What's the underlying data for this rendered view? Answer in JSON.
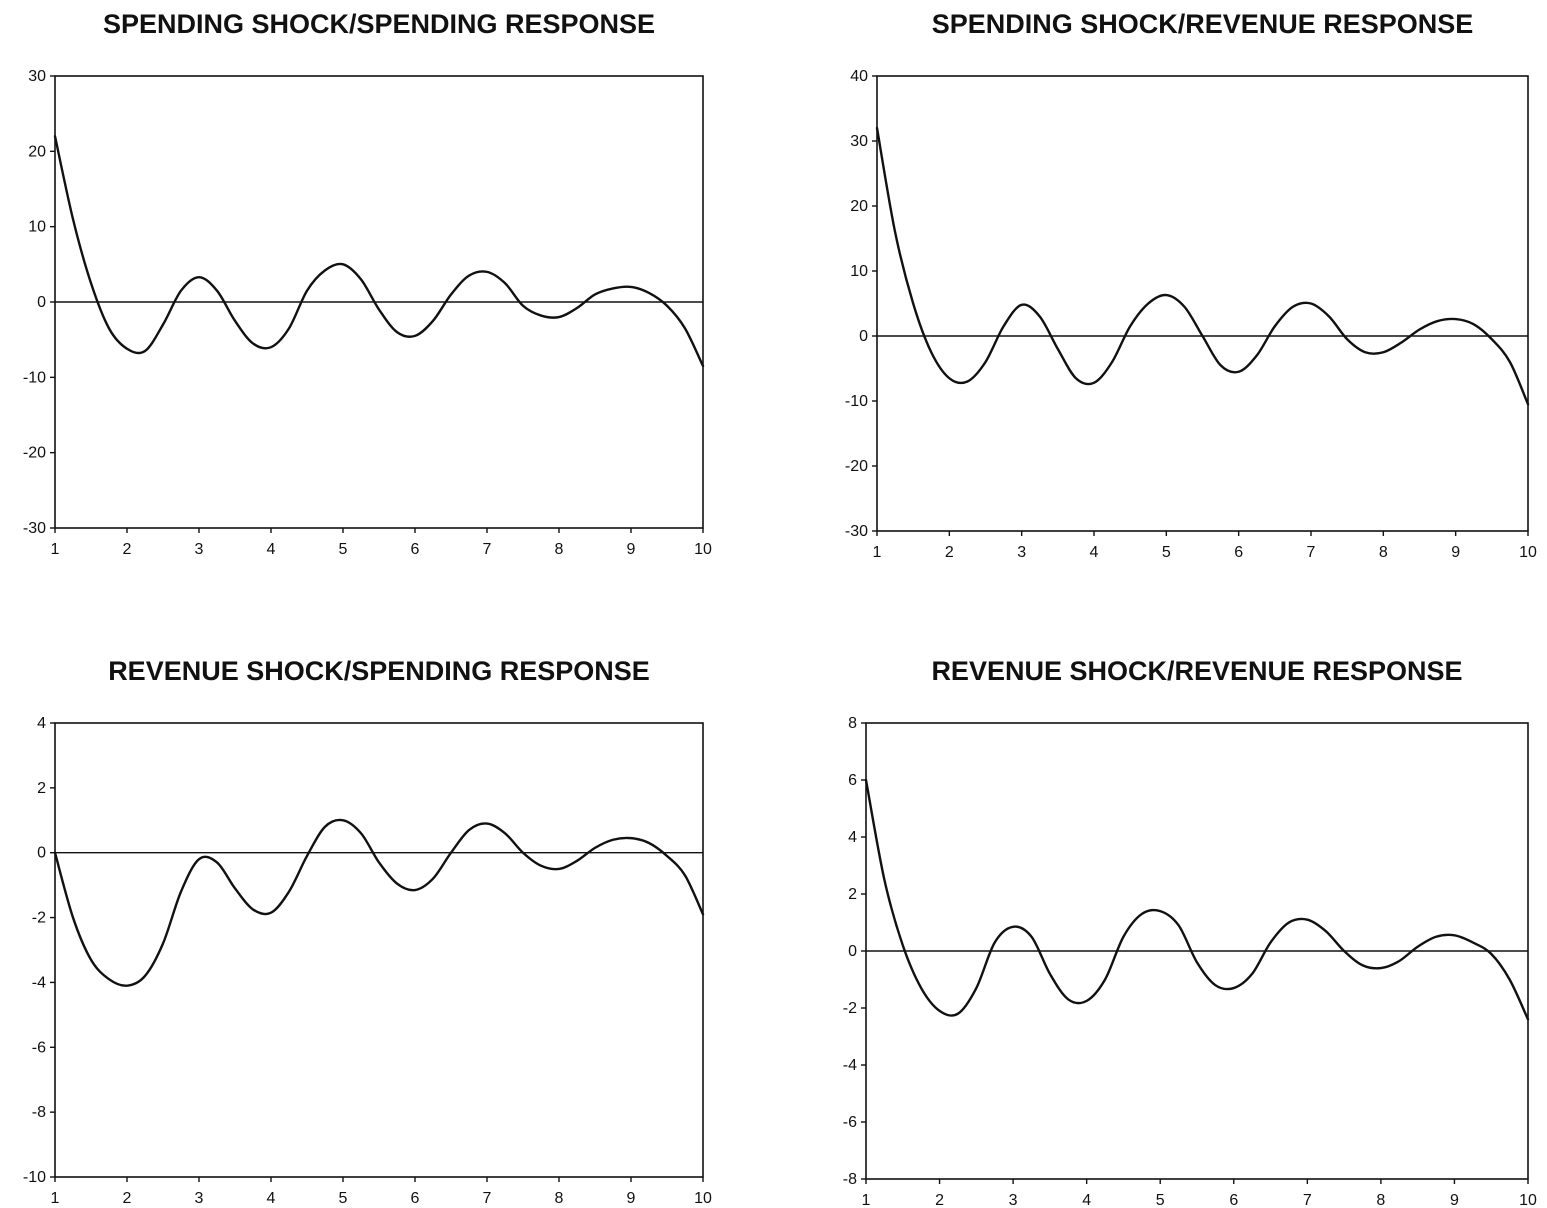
{
  "chart_data": [
    {
      "type": "line",
      "title": "SPENDING SHOCK/SPENDING RESPONSE",
      "ylim": [
        -30,
        30
      ],
      "yticks": [
        30,
        20,
        10,
        0,
        -10,
        -20,
        -30
      ],
      "ytick_labels": [
        "30",
        "20",
        "10",
        "0",
        "-10",
        "-20",
        "-30"
      ],
      "xlim": [
        1,
        10
      ],
      "xticks": [
        1,
        2,
        3,
        4,
        5,
        6,
        7,
        8,
        9,
        10
      ],
      "xtick_labels": [
        "1",
        "2",
        "3",
        "4",
        "5",
        "6",
        "7",
        "8",
        "9",
        "10"
      ],
      "zero_line": true,
      "x": [
        1,
        1.25,
        1.5,
        1.75,
        2,
        2.25,
        2.5,
        2.75,
        3,
        3.25,
        3.5,
        3.75,
        4,
        4.25,
        4.5,
        4.75,
        5,
        5.25,
        5.5,
        5.75,
        6,
        6.25,
        6.5,
        6.75,
        7,
        7.25,
        7.5,
        7.75,
        8,
        8.25,
        8.5,
        8.75,
        9,
        9.25,
        9.5,
        9.75,
        10
      ],
      "y": [
        22,
        11,
        2.5,
        -3.5,
        -6.2,
        -6.5,
        -3,
        1.5,
        3.3,
        1.5,
        -2.5,
        -5.5,
        -6,
        -3.5,
        1.5,
        4.2,
        5,
        3,
        -1,
        -4,
        -4.5,
        -2.5,
        1,
        3.5,
        4,
        2.5,
        -0.5,
        -1.8,
        -2,
        -0.8,
        1,
        1.8,
        2,
        1.2,
        -0.5,
        -3.5,
        -8.5
      ]
    },
    {
      "type": "line",
      "title": "SPENDING SHOCK/REVENUE RESPONSE",
      "ylim": [
        -30,
        40
      ],
      "yticks": [
        40,
        30,
        20,
        10,
        0,
        -10,
        -20,
        -30
      ],
      "ytick_labels": [
        "40",
        "30",
        "20",
        "10",
        "0",
        "-10",
        "-20",
        "-30"
      ],
      "xlim": [
        1,
        10
      ],
      "xticks": [
        1,
        2,
        3,
        4,
        5,
        6,
        7,
        8,
        9,
        10
      ],
      "xtick_labels": [
        "1",
        "2",
        "3",
        "4",
        "5",
        "6",
        "7",
        "8",
        "9",
        "10"
      ],
      "zero_line": true,
      "x": [
        1,
        1.25,
        1.5,
        1.75,
        2,
        2.25,
        2.5,
        2.75,
        3,
        3.25,
        3.5,
        3.75,
        4,
        4.25,
        4.5,
        4.75,
        5,
        5.25,
        5.5,
        5.75,
        6,
        6.25,
        6.5,
        6.75,
        7,
        7.25,
        7.5,
        7.75,
        8,
        8.25,
        8.5,
        8.75,
        9,
        9.25,
        9.5,
        9.75,
        10
      ],
      "y": [
        32,
        16,
        5,
        -2.5,
        -6.5,
        -7,
        -4,
        1.5,
        4.8,
        3,
        -2,
        -6.5,
        -7.2,
        -4,
        1.5,
        5,
        6.3,
        4.5,
        0,
        -4.5,
        -5.5,
        -3,
        1.5,
        4.5,
        5,
        3,
        -0.5,
        -2.5,
        -2.5,
        -1,
        1,
        2.3,
        2.6,
        1.8,
        -0.5,
        -4,
        -10.5
      ]
    },
    {
      "type": "line",
      "title": "REVENUE SHOCK/SPENDING RESPONSE",
      "ylim": [
        -10,
        4
      ],
      "yticks": [
        4,
        2,
        0,
        -2,
        -4,
        -6,
        -8,
        -10
      ],
      "ytick_labels": [
        "4",
        "2",
        "0",
        "-2",
        "-4",
        "-6",
        "-8",
        "-10"
      ],
      "xlim": [
        1,
        10
      ],
      "xticks": [
        1,
        2,
        3,
        4,
        5,
        6,
        7,
        8,
        9,
        10
      ],
      "xtick_labels": [
        "1",
        "2",
        "3",
        "4",
        "5",
        "6",
        "7",
        "8",
        "9",
        "10"
      ],
      "zero_line": true,
      "x": [
        1,
        1.25,
        1.5,
        1.75,
        2,
        2.25,
        2.5,
        2.75,
        3,
        3.25,
        3.5,
        3.75,
        4,
        4.25,
        4.5,
        4.75,
        5,
        5.25,
        5.5,
        5.75,
        6,
        6.25,
        6.5,
        6.75,
        7,
        7.25,
        7.5,
        7.75,
        8,
        8.25,
        8.5,
        8.75,
        9,
        9.25,
        9.5,
        9.75,
        10
      ],
      "y": [
        0,
        -2,
        -3.3,
        -3.9,
        -4.1,
        -3.8,
        -2.8,
        -1.2,
        -0.2,
        -0.3,
        -1.1,
        -1.75,
        -1.85,
        -1.2,
        -0.1,
        0.8,
        1,
        0.6,
        -0.3,
        -0.95,
        -1.15,
        -0.8,
        0,
        0.7,
        0.9,
        0.6,
        0,
        -0.4,
        -0.5,
        -0.25,
        0.15,
        0.4,
        0.45,
        0.3,
        -0.1,
        -0.7,
        -1.9
      ]
    },
    {
      "type": "line",
      "title": "REVENUE SHOCK/REVENUE RESPONSE",
      "ylim": [
        -8,
        8
      ],
      "yticks": [
        8,
        6,
        4,
        2,
        0,
        -2,
        -4,
        -6,
        -8
      ],
      "ytick_labels": [
        "8",
        "6",
        "4",
        "2",
        "0",
        "-2",
        "-4",
        "-6",
        "-8"
      ],
      "xlim": [
        1,
        10
      ],
      "xticks": [
        1,
        2,
        3,
        4,
        5,
        6,
        7,
        8,
        9,
        10
      ],
      "xtick_labels": [
        "1",
        "2",
        "3",
        "4",
        "5",
        "6",
        "7",
        "8",
        "9",
        "10"
      ],
      "zero_line": true,
      "x": [
        1,
        1.25,
        1.5,
        1.75,
        2,
        2.25,
        2.5,
        2.75,
        3,
        3.25,
        3.5,
        3.75,
        4,
        4.25,
        4.5,
        4.75,
        5,
        5.25,
        5.5,
        5.75,
        6,
        6.25,
        6.5,
        6.75,
        7,
        7.25,
        7.5,
        7.75,
        8,
        8.25,
        8.5,
        8.75,
        9,
        9.25,
        9.5,
        9.75,
        10
      ],
      "y": [
        6,
        2.5,
        0.2,
        -1.3,
        -2.1,
        -2.2,
        -1.3,
        0.3,
        0.85,
        0.5,
        -0.8,
        -1.7,
        -1.75,
        -1,
        0.5,
        1.3,
        1.4,
        0.9,
        -0.4,
        -1.2,
        -1.3,
        -0.8,
        0.3,
        1,
        1.1,
        0.7,
        0,
        -0.5,
        -0.6,
        -0.35,
        0.15,
        0.5,
        0.55,
        0.3,
        -0.1,
        -1,
        -2.4
      ]
    }
  ]
}
